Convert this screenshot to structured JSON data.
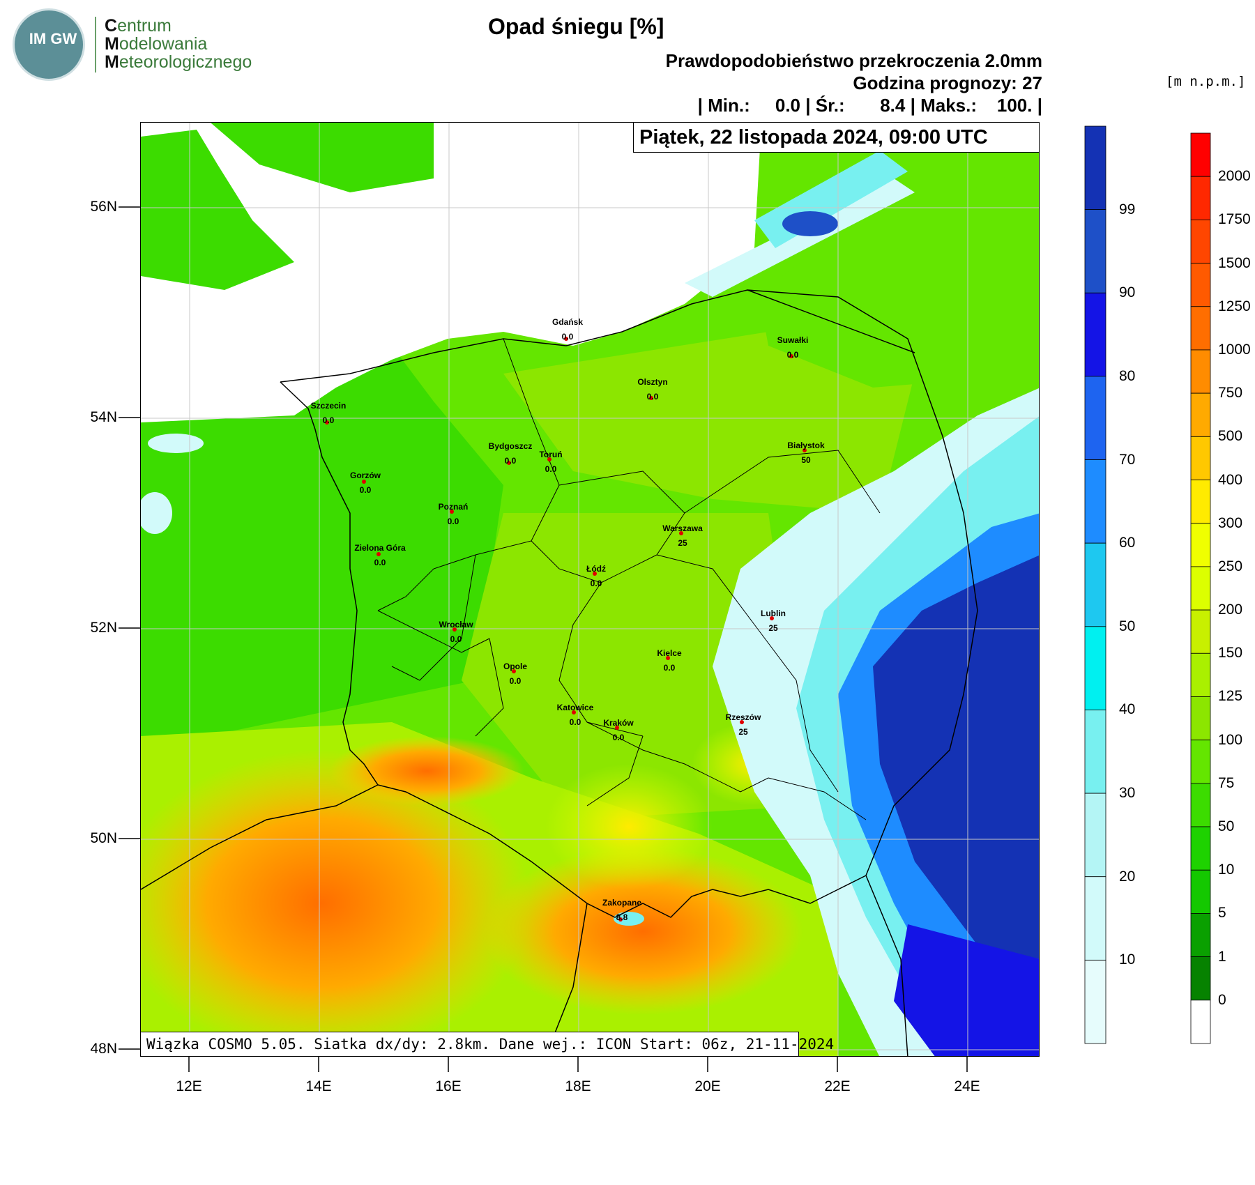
{
  "logo": {
    "badge": "IM GW",
    "line1_initial": "C",
    "line1_rest": "entrum",
    "line2_initial": "M",
    "line2_rest": "odelowania",
    "line3_initial": "M",
    "line3_rest": "eteorologicznego"
  },
  "header": {
    "title": "Opad śniegu [%]",
    "line1": "Prawdopodobieństwo przekroczenia 2.0mm",
    "line2": "Godzina prognozy: 27",
    "line3": "| Min.:     0.0 | Śr.:       8.4 | Maks.:    100. |"
  },
  "date_label": "Piątek, 22 listopada 2024, 09:00 UTC",
  "footer_label": "Wiązka COSMO 5.05. Siatka dx/dy: 2.8km. Dane wej.: ICON Start: 06z, 21-11-2024",
  "elevation_unit": "[m n.p.m.]",
  "axes": {
    "lat_ticks": [
      "56N",
      "54N",
      "52N",
      "50N",
      "48N"
    ],
    "lon_ticks": [
      "12E",
      "14E",
      "16E",
      "18E",
      "20E",
      "22E",
      "24E"
    ]
  },
  "colorbar_probability": {
    "labels": [
      "99",
      "90",
      "80",
      "70",
      "60",
      "50",
      "40",
      "30",
      "20",
      "10"
    ],
    "colors": [
      "#1432b4",
      "#1e50c8",
      "#1414e6",
      "#1e64f0",
      "#1e8cff",
      "#1ec8f0",
      "#00f0f0",
      "#78f0f0",
      "#b4f5f5",
      "#d2fafa",
      "#e6fcfc"
    ]
  },
  "colorbar_elevation": {
    "labels": [
      "2000",
      "1750",
      "1500",
      "1250",
      "1000",
      "750",
      "500",
      "400",
      "300",
      "250",
      "200",
      "150",
      "125",
      "100",
      "75",
      "50",
      "10",
      "5",
      "1",
      "0"
    ],
    "colors": [
      "#ff0000",
      "#ff2800",
      "#ff4600",
      "#ff5a00",
      "#ff6e00",
      "#ff8c00",
      "#ffaa00",
      "#ffc800",
      "#ffeb00",
      "#f0ff00",
      "#dcff00",
      "#c8f000",
      "#aaf000",
      "#8ce600",
      "#64e600",
      "#3cdc00",
      "#1ed200",
      "#14c800",
      "#0aa000",
      "#068200",
      "#ffffff"
    ]
  },
  "cities": [
    {
      "name": "Gdańsk",
      "value": "0.0"
    },
    {
      "name": "Suwałki",
      "value": "0.0"
    },
    {
      "name": "Olsztyn",
      "value": "0.0"
    },
    {
      "name": "Szczecin",
      "value": "0.0"
    },
    {
      "name": "Bydgoszcz",
      "value": "0.0"
    },
    {
      "name": "Toruń",
      "value": "0.0"
    },
    {
      "name": "Białystok",
      "value": "50"
    },
    {
      "name": "Gorzów",
      "value": "0.0"
    },
    {
      "name": "Poznań",
      "value": "0.0"
    },
    {
      "name": "Warszawa",
      "value": "25"
    },
    {
      "name": "Zielona Góra",
      "value": "0.0"
    },
    {
      "name": "Łódź",
      "value": "0.0"
    },
    {
      "name": "Lublin",
      "value": "25"
    },
    {
      "name": "Wrocław",
      "value": "0.0"
    },
    {
      "name": "Kielce",
      "value": "0.0"
    },
    {
      "name": "Opole",
      "value": "0.0"
    },
    {
      "name": "Katowice",
      "value": "0.0"
    },
    {
      "name": "Kraków",
      "value": "0.0"
    },
    {
      "name": "Rzeszów",
      "value": "25"
    },
    {
      "name": "Zakopane",
      "value": "8.8"
    }
  ]
}
